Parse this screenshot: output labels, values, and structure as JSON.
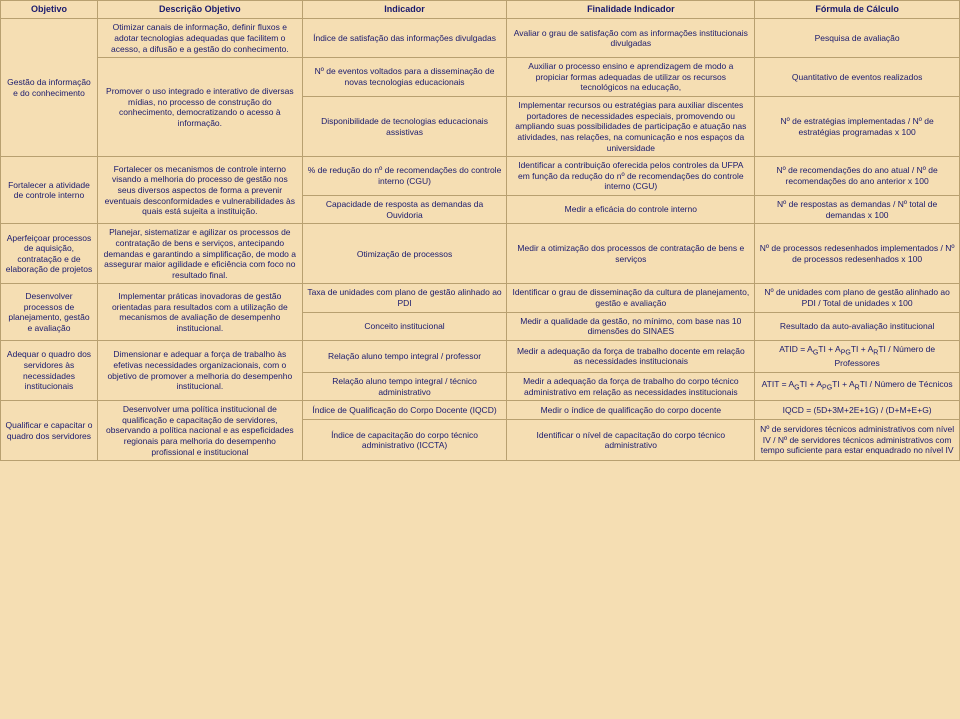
{
  "headers": {
    "objetivo": "Objetivo",
    "descricao": "Descrição Objetivo",
    "indicador": "Indicador",
    "finalidade": "Finalidade Indicador",
    "formula": "Fórmula de Cálculo"
  },
  "rows": [
    {
      "objetivo": "Gestão da informação e do conhecimento",
      "objetivo_rowspan": 3,
      "desc": "Otimizar canais de informação, definir fluxos e adotar tecnologias adequadas que facilitem o acesso, a difusão e a gestão do conhecimento.",
      "desc_rowspan": 1,
      "ind": "Índice de satisfação das informações divulgadas",
      "fin": "Avaliar o grau de satisfação com as informações institucionais divulgadas",
      "form": "Pesquisa de avaliação"
    },
    {
      "desc": "Promover o uso integrado e interativo de diversas mídias, no processo de construção do conhecimento, democratizando o acesso à informação.",
      "desc_rowspan": 2,
      "ind": "Nº de eventos voltados para a disseminação de novas tecnologias educacionais",
      "fin": "Auxiliar o processo ensino e aprendizagem de modo a propiciar formas adequadas de utilizar os recursos tecnológicos na educação,",
      "form": "Quantitativo de eventos realizados"
    },
    {
      "ind": "Disponibilidade de tecnologias educacionais assistivas",
      "fin": "Implementar recursos ou estratégias para auxiliar discentes portadores de necessidades especiais, promovendo ou ampliando suas possibilidades de participação e atuação nas atividades, nas relações, na comunicação e nos espaços da universidade",
      "form": "Nº de estratégias implementadas / Nº de estratégias programadas x 100"
    },
    {
      "objetivo": "Fortalecer a atividade de controle interno",
      "objetivo_rowspan": 2,
      "desc": "Fortalecer os mecanismos de controle interno visando a melhoria do processo de gestão nos seus diversos aspectos de forma a prevenir eventuais desconformidades e vulnerabilidades às quais está sujeita a instituição.",
      "desc_rowspan": 2,
      "ind": "% de redução do nº de recomendações do controle interno (CGU)",
      "fin": "Identificar a contribuição oferecida pelos controles da UFPA em função da redução do nº de recomendações do controle interno (CGU)",
      "form": "Nº de recomendações do ano atual / Nº de recomendações do ano anterior x 100"
    },
    {
      "ind": "Capacidade de resposta as demandas da Ouvidoria",
      "fin": "Medir a eficácia do controle interno",
      "form": "Nº de respostas as demandas / Nº total de demandas x 100"
    },
    {
      "objetivo": "Aperfeiçoar processos de aquisição, contratação e de elaboração de projetos",
      "objetivo_rowspan": 1,
      "desc": "Planejar, sistematizar e agilizar os processos de contratação de bens e serviços, antecipando demandas e garantindo a simplificação, de modo a assegurar maior agilidade e eficiência com foco no resultado final.",
      "desc_rowspan": 1,
      "ind": "Otimização de processos",
      "fin": "Medir a otimização dos processos de contratação de bens e serviços",
      "form": "Nº de processos redesenhados implementados / Nº de processos redesenhados x 100"
    },
    {
      "objetivo": "Desenvolver processos de planejamento, gestão e avaliação",
      "objetivo_rowspan": 2,
      "desc": "Implementar práticas inovadoras de gestão orientadas para resultados com a utilização de mecanismos de avaliação de desempenho institucional.",
      "desc_rowspan": 2,
      "ind": "Taxa de unidades com plano de gestão alinhado ao PDI",
      "fin": "Identificar o grau de disseminação da cultura de planejamento, gestão e avaliação",
      "form": "Nº de unidades com plano de gestão alinhado ao PDI / Total de unidades x 100"
    },
    {
      "ind": "Conceito institucional",
      "fin": "Medir a qualidade da gestão, no mínimo, com base nas 10 dimensões do SINAES",
      "form": "Resultado da auto-avaliação institucional"
    },
    {
      "objetivo": "Adequar o quadro dos servidores às necessidades institucionais",
      "objetivo_rowspan": 2,
      "desc": "Dimensionar e adequar a força de trabalho às efetivas necessidades organizacionais, com o objetivo de promover a melhoria do desempenho institucional.",
      "desc_rowspan": 2,
      "ind": "Relação aluno tempo integral / professor",
      "fin": "Medir a adequação da força de trabalho docente em relação as necessidades institucionais",
      "form_html": "ATID = A<sub>G</sub>TI + A<sub>PG</sub>TI + A<sub>R</sub>TI / Número de Professores"
    },
    {
      "ind": "Relação aluno tempo integral / técnico administrativo",
      "fin": "Medir a adequação da força de trabalho do corpo técnico administrativo em relação as necessidades institucionais",
      "form_html": "ATIT = A<sub>G</sub>TI + A<sub>PG</sub>TI + A<sub>R</sub>TI / Número de Técnicos"
    },
    {
      "objetivo": "Qualificar e capacitar o quadro dos servidores",
      "objetivo_rowspan": 2,
      "desc": "Desenvolver uma política institucional de qualificação e capacitação de servidores, observando a política nacional e as espeficidades regionais para melhoria do desempenho profissional e institucional",
      "desc_rowspan": 2,
      "ind": "Índice de Qualificação do Corpo Docente (IQCD)",
      "fin": "Medir o índice de qualificação do corpo docente",
      "form": "IQCD = (5D+3M+2E+1G) / (D+M+E+G)"
    },
    {
      "ind": "Índice de capacitação do corpo técnico administrativo (ICCTA)",
      "fin": "Identificar o nível de capacitação do corpo técnico administrativo",
      "form": "Nº de servidores técnicos administrativos com nível IV / Nº de servidores técnicos administrativos com tempo suficiente para estar enquadrado no nível IV"
    }
  ],
  "colors": {
    "background": "#f5deb3",
    "border": "#b8a070",
    "text": "#1a1a6e"
  }
}
